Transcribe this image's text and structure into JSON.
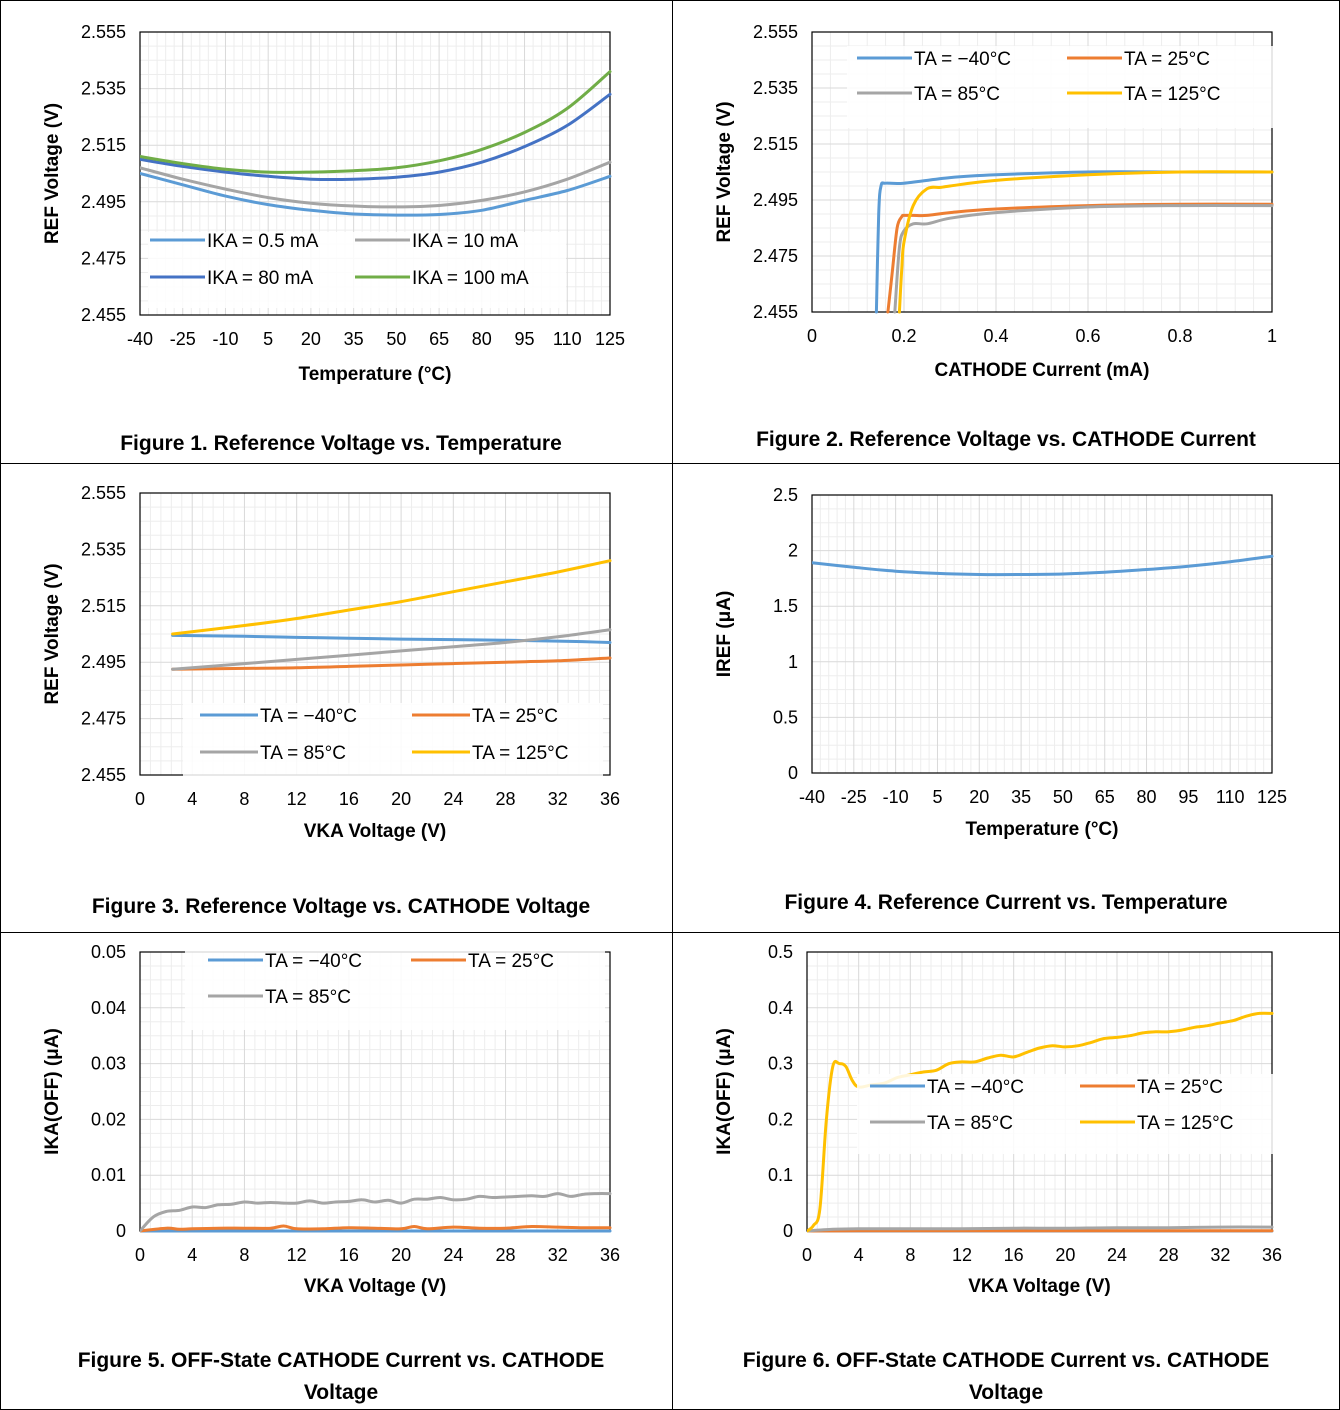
{
  "colors": {
    "blue": "#5B9BD5",
    "orange": "#ED7D31",
    "gray": "#A5A5A5",
    "yellow": "#FFC000",
    "darkblue": "#4472C4",
    "green": "#70AD47",
    "grid": "#D9D9D9",
    "axis": "#000000"
  },
  "captions": [
    "Figure 1. Reference Voltage vs. Temperature",
    "Figure 2. Reference Voltage vs. CATHODE Current",
    "Figure 3. Reference Voltage vs. CATHODE Voltage",
    "Figure 4. Reference Current vs. Temperature",
    "Figure 5. OFF-State CATHODE Current vs. CATHODE Voltage",
    "Figure 6. OFF-State CATHODE Current vs. CATHODE Voltage"
  ],
  "chart_data": [
    {
      "type": "line",
      "title": "",
      "xlabel": "Temperature (°C)",
      "ylabel": "REF Voltage (V)",
      "xlim": [
        -40,
        125
      ],
      "ylim": [
        2.455,
        2.555
      ],
      "xticks": [
        -40,
        -25,
        -10,
        5,
        20,
        35,
        50,
        65,
        80,
        95,
        110,
        125
      ],
      "xtick_labels": [
        "-40",
        "-25",
        "-10",
        "5",
        "20",
        "35",
        "50",
        "65",
        "80",
        "95",
        "110",
        "125"
      ],
      "yticks": [
        2.455,
        2.475,
        2.495,
        2.515,
        2.535,
        2.555
      ],
      "ytick_labels": [
        "2.455",
        "2.475",
        "2.495",
        "2.515",
        "2.535",
        "2.555"
      ],
      "grid": true,
      "legend": "bottom-left",
      "legend_columns": 2,
      "series": [
        {
          "name": "IKA = 0.5 mA",
          "color": "blue",
          "x": [
            -40,
            -25,
            -10,
            5,
            20,
            35,
            50,
            65,
            80,
            95,
            110,
            125
          ],
          "y": [
            2.505,
            2.501,
            2.497,
            2.494,
            2.492,
            2.4907,
            2.4903,
            2.4905,
            2.492,
            2.4955,
            2.499,
            2.504
          ]
        },
        {
          "name": "IKA = 10 mA",
          "color": "gray",
          "x": [
            -40,
            -25,
            -10,
            5,
            20,
            35,
            50,
            65,
            80,
            95,
            110,
            125
          ],
          "y": [
            2.507,
            2.503,
            2.4995,
            2.4965,
            2.4945,
            2.4935,
            2.4932,
            2.4937,
            2.4955,
            2.4985,
            2.503,
            2.509
          ]
        },
        {
          "name": "IKA = 80 mA",
          "color": "darkblue",
          "x": [
            -40,
            -25,
            -10,
            5,
            20,
            35,
            50,
            65,
            80,
            95,
            110,
            125
          ],
          "y": [
            2.51,
            2.5075,
            2.5055,
            2.504,
            2.503,
            2.503,
            2.5037,
            2.5055,
            2.509,
            2.5145,
            2.522,
            2.533
          ]
        },
        {
          "name": "IKA = 100 mA",
          "color": "green",
          "x": [
            -40,
            -25,
            -10,
            5,
            20,
            35,
            50,
            65,
            80,
            95,
            110,
            125
          ],
          "y": [
            2.511,
            2.5085,
            2.5065,
            2.5055,
            2.5055,
            2.506,
            2.507,
            2.5095,
            2.5135,
            2.5195,
            2.528,
            2.541
          ]
        }
      ]
    },
    {
      "type": "line",
      "title": "",
      "xlabel": "CATHODE Current (mA)",
      "ylabel": "REF Voltage (V)",
      "xlim": [
        0,
        1
      ],
      "ylim": [
        2.455,
        2.555
      ],
      "xticks": [
        0,
        0.2,
        0.4,
        0.6,
        0.8,
        1
      ],
      "xtick_labels": [
        "0",
        "0.2",
        "0.4",
        "0.6",
        "0.8",
        "1"
      ],
      "yticks": [
        2.455,
        2.475,
        2.495,
        2.515,
        2.535,
        2.555
      ],
      "ytick_labels": [
        "2.455",
        "2.475",
        "2.495",
        "2.515",
        "2.535",
        "2.555"
      ],
      "grid": true,
      "legend": "top",
      "legend_columns": 2,
      "series": [
        {
          "name": "TA = −40°C",
          "color": "blue",
          "x": [
            0.14,
            0.145,
            0.15,
            0.16,
            0.2,
            0.3,
            0.4,
            0.6,
            0.8,
            1.0
          ],
          "y": [
            2.455,
            2.49,
            2.5,
            2.501,
            2.501,
            2.503,
            2.504,
            2.505,
            2.505,
            2.505
          ]
        },
        {
          "name": "TA = 25°C",
          "color": "orange",
          "x": [
            0.165,
            0.175,
            0.185,
            0.195,
            0.2,
            0.22,
            0.25,
            0.3,
            0.4,
            0.6,
            0.8,
            1.0
          ],
          "y": [
            2.455,
            2.47,
            2.485,
            2.489,
            2.4895,
            2.4895,
            2.4895,
            2.4905,
            2.4918,
            2.493,
            2.4935,
            2.4935
          ]
        },
        {
          "name": "TA = 85°C",
          "color": "gray",
          "x": [
            0.18,
            0.19,
            0.2,
            0.22,
            0.25,
            0.3,
            0.4,
            0.6,
            0.8,
            1.0
          ],
          "y": [
            2.455,
            2.478,
            2.484,
            2.4865,
            2.4865,
            2.4885,
            2.4905,
            2.4925,
            2.493,
            2.493
          ]
        },
        {
          "name": "TA = 125°C",
          "color": "yellow",
          "x": [
            0.19,
            0.195,
            0.2,
            0.22,
            0.25,
            0.28,
            0.3,
            0.4,
            0.6,
            0.8,
            1.0
          ],
          "y": [
            2.455,
            2.47,
            2.48,
            2.493,
            2.499,
            2.4995,
            2.5,
            2.502,
            2.504,
            2.505,
            2.505
          ]
        }
      ]
    },
    {
      "type": "line",
      "title": "",
      "xlabel": "VKA Voltage (V)",
      "ylabel": "REF Voltage (V)",
      "xlim": [
        0,
        36
      ],
      "ylim": [
        2.455,
        2.555
      ],
      "xticks": [
        0,
        4,
        8,
        12,
        16,
        20,
        24,
        28,
        32,
        36
      ],
      "xtick_labels": [
        "0",
        "4",
        "8",
        "12",
        "16",
        "20",
        "24",
        "28",
        "32",
        "36"
      ],
      "yticks": [
        2.455,
        2.475,
        2.495,
        2.515,
        2.535,
        2.555
      ],
      "ytick_labels": [
        "2.455",
        "2.475",
        "2.495",
        "2.515",
        "2.535",
        "2.555"
      ],
      "grid": true,
      "legend": "bottom",
      "legend_columns": 2,
      "series": [
        {
          "name": "TA = −40°C",
          "color": "blue",
          "x": [
            2.5,
            8,
            12,
            16,
            20,
            24,
            28,
            32,
            36
          ],
          "y": [
            2.5045,
            2.5042,
            2.5038,
            2.5035,
            2.5032,
            2.503,
            2.5028,
            2.5025,
            2.502
          ]
        },
        {
          "name": "TA = 25°C",
          "color": "orange",
          "x": [
            2.5,
            8,
            12,
            16,
            20,
            24,
            28,
            32,
            36
          ],
          "y": [
            2.4925,
            2.4928,
            2.493,
            2.4935,
            2.494,
            2.4945,
            2.495,
            2.4955,
            2.4965
          ]
        },
        {
          "name": "TA = 85°C",
          "color": "gray",
          "x": [
            2.5,
            8,
            12,
            16,
            20,
            24,
            28,
            32,
            36
          ],
          "y": [
            2.4925,
            2.4945,
            2.496,
            2.4975,
            2.499,
            2.5005,
            2.502,
            2.504,
            2.5065
          ]
        },
        {
          "name": "TA = 125°C",
          "color": "yellow",
          "x": [
            2.5,
            8,
            12,
            16,
            20,
            24,
            28,
            32,
            36
          ],
          "y": [
            2.505,
            2.508,
            2.5105,
            2.5135,
            2.5165,
            2.52,
            2.5235,
            2.527,
            2.531
          ]
        }
      ]
    },
    {
      "type": "line",
      "title": "",
      "xlabel": "Temperature (°C)",
      "ylabel": "IREF (μA)",
      "xlim": [
        -40,
        125
      ],
      "ylim": [
        0,
        2.5
      ],
      "xticks": [
        -40,
        -25,
        -10,
        5,
        20,
        35,
        50,
        65,
        80,
        95,
        110,
        125
      ],
      "xtick_labels": [
        "-40",
        "-25",
        "-10",
        "5",
        "20",
        "35",
        "50",
        "65",
        "80",
        "95",
        "110",
        "125"
      ],
      "yticks": [
        0,
        0.5,
        1,
        1.5,
        2,
        2.5
      ],
      "ytick_labels": [
        "0",
        "0.5",
        "1",
        "1.5",
        "2",
        "2.5"
      ],
      "grid": true,
      "legend": "none",
      "series": [
        {
          "name": "",
          "color": "blue",
          "x": [
            -40,
            -25,
            -10,
            5,
            20,
            35,
            50,
            65,
            80,
            95,
            110,
            125
          ],
          "y": [
            1.89,
            1.85,
            1.815,
            1.795,
            1.785,
            1.785,
            1.79,
            1.805,
            1.83,
            1.86,
            1.9,
            1.95
          ]
        }
      ]
    },
    {
      "type": "line",
      "title": "",
      "xlabel": "VKA Voltage (V)",
      "ylabel": "IKA(OFF) (μA)",
      "xlim": [
        0,
        36
      ],
      "ylim": [
        0,
        0.05
      ],
      "xticks": [
        0,
        4,
        8,
        12,
        16,
        20,
        24,
        28,
        32,
        36
      ],
      "xtick_labels": [
        "0",
        "4",
        "8",
        "12",
        "16",
        "20",
        "24",
        "28",
        "32",
        "36"
      ],
      "yticks": [
        0,
        0.01,
        0.02,
        0.03,
        0.04,
        0.05
      ],
      "ytick_labels": [
        "0",
        "0.01",
        "0.02",
        "0.03",
        "0.04",
        "0.05"
      ],
      "grid": true,
      "legend": "top",
      "legend_columns": 2,
      "series": [
        {
          "name": "TA = −40°C",
          "color": "blue",
          "x": [
            0,
            4,
            8,
            12,
            16,
            20,
            24,
            28,
            32,
            36
          ],
          "y": [
            0,
            0,
            0,
            0,
            0,
            0,
            0,
            0,
            0,
            0
          ]
        },
        {
          "name": "TA = 25°C",
          "color": "orange",
          "x": [
            0,
            2,
            3,
            4,
            6,
            8,
            10,
            11,
            12,
            14,
            16,
            18,
            20,
            21,
            22,
            24,
            26,
            28,
            30,
            32,
            34,
            36
          ],
          "y": [
            0,
            0.0005,
            0.0003,
            0.0004,
            0.0005,
            0.0005,
            0.0005,
            0.0009,
            0.0004,
            0.0004,
            0.0006,
            0.0005,
            0.0004,
            0.0008,
            0.0004,
            0.0007,
            0.0005,
            0.0005,
            0.0008,
            0.0007,
            0.0006,
            0.0006
          ]
        },
        {
          "name": "TA = 85°C",
          "color": "gray",
          "x": [
            0,
            1,
            2,
            3,
            4,
            5,
            6,
            7,
            8,
            9,
            10,
            11,
            12,
            13,
            14,
            15,
            16,
            17,
            18,
            19,
            20,
            21,
            22,
            23,
            24,
            25,
            26,
            27,
            28,
            29,
            30,
            31,
            32,
            33,
            34,
            35,
            36
          ],
          "y": [
            0,
            0.0025,
            0.0035,
            0.0037,
            0.0043,
            0.0042,
            0.0047,
            0.0048,
            0.0052,
            0.005,
            0.0051,
            0.005,
            0.005,
            0.0054,
            0.005,
            0.0052,
            0.0053,
            0.0056,
            0.0052,
            0.0055,
            0.005,
            0.0057,
            0.0057,
            0.006,
            0.0056,
            0.0057,
            0.0062,
            0.006,
            0.0061,
            0.0062,
            0.0063,
            0.0062,
            0.0067,
            0.0062,
            0.0066,
            0.0067,
            0.0067
          ]
        }
      ]
    },
    {
      "type": "line",
      "title": "",
      "xlabel": "VKA Voltage (V)",
      "ylabel": "IKA(OFF) (μA)",
      "xlim": [
        0,
        36
      ],
      "ylim": [
        0,
        0.5
      ],
      "xticks": [
        0,
        4,
        8,
        12,
        16,
        20,
        24,
        28,
        32,
        36
      ],
      "xtick_labels": [
        "0",
        "4",
        "8",
        "12",
        "16",
        "20",
        "24",
        "28",
        "32",
        "36"
      ],
      "yticks": [
        0,
        0.1,
        0.2,
        0.3,
        0.4,
        0.5
      ],
      "ytick_labels": [
        "0",
        "0.1",
        "0.2",
        "0.3",
        "0.4",
        "0.5"
      ],
      "grid": true,
      "legend": "bottom",
      "legend_columns": 2,
      "series": [
        {
          "name": "TA = −40°C",
          "color": "blue",
          "x": [
            0,
            4,
            8,
            12,
            16,
            20,
            24,
            28,
            32,
            36
          ],
          "y": [
            0,
            0,
            0,
            0,
            0,
            0,
            0,
            0,
            0,
            0
          ]
        },
        {
          "name": "TA = 25°C",
          "color": "orange",
          "x": [
            0,
            4,
            8,
            12,
            16,
            20,
            24,
            28,
            32,
            36
          ],
          "y": [
            0,
            0.0005,
            0.0005,
            0.0005,
            0.0005,
            0.0005,
            0.0005,
            0.0005,
            0.0006,
            0.0006
          ]
        },
        {
          "name": "TA = 85°C",
          "color": "gray",
          "x": [
            0,
            2,
            4,
            8,
            12,
            16,
            20,
            24,
            28,
            32,
            36
          ],
          "y": [
            0,
            0.003,
            0.004,
            0.004,
            0.004,
            0.005,
            0.005,
            0.006,
            0.006,
            0.007,
            0.007
          ]
        },
        {
          "name": "TA = 125°C",
          "color": "yellow",
          "x": [
            0,
            0.5,
            1,
            1.5,
            2,
            2.5,
            3,
            3.5,
            4,
            5,
            6,
            7,
            8,
            9,
            10,
            11,
            12,
            13,
            14,
            15,
            16,
            17,
            18,
            19,
            20,
            21,
            22,
            23,
            24,
            25,
            26,
            27,
            28,
            29,
            30,
            31,
            32,
            33,
            34,
            35,
            36
          ],
          "y": [
            0,
            0.01,
            0.04,
            0.2,
            0.295,
            0.3,
            0.295,
            0.27,
            0.258,
            0.262,
            0.265,
            0.275,
            0.28,
            0.285,
            0.288,
            0.3,
            0.303,
            0.303,
            0.31,
            0.315,
            0.312,
            0.32,
            0.328,
            0.332,
            0.33,
            0.332,
            0.338,
            0.345,
            0.347,
            0.35,
            0.355,
            0.357,
            0.357,
            0.36,
            0.365,
            0.368,
            0.373,
            0.377,
            0.385,
            0.39,
            0.39
          ]
        }
      ]
    }
  ]
}
